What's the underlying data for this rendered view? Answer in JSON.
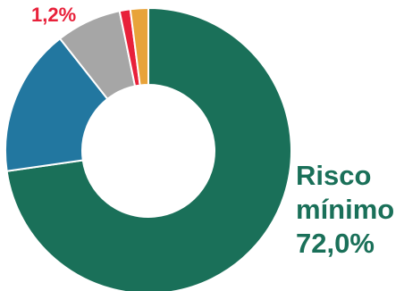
{
  "chart_data": {
    "type": "pie",
    "variant": "donut",
    "slices": [
      {
        "value": 72.0,
        "color": "#1a7059"
      },
      {
        "value": 16.5,
        "color": "#2277a0"
      },
      {
        "value": 7.3,
        "color": "#a6a6a6"
      },
      {
        "value": 1.2,
        "color": "#e8213a"
      },
      {
        "value": 2.0,
        "color": "#e8a33a"
      }
    ],
    "labels": {
      "main": {
        "line1": "Risco",
        "line2": "mínimo",
        "line3": "72,0%",
        "color": "#1a7059"
      },
      "red": {
        "text": "1,2%",
        "color": "#e8213a"
      }
    }
  }
}
